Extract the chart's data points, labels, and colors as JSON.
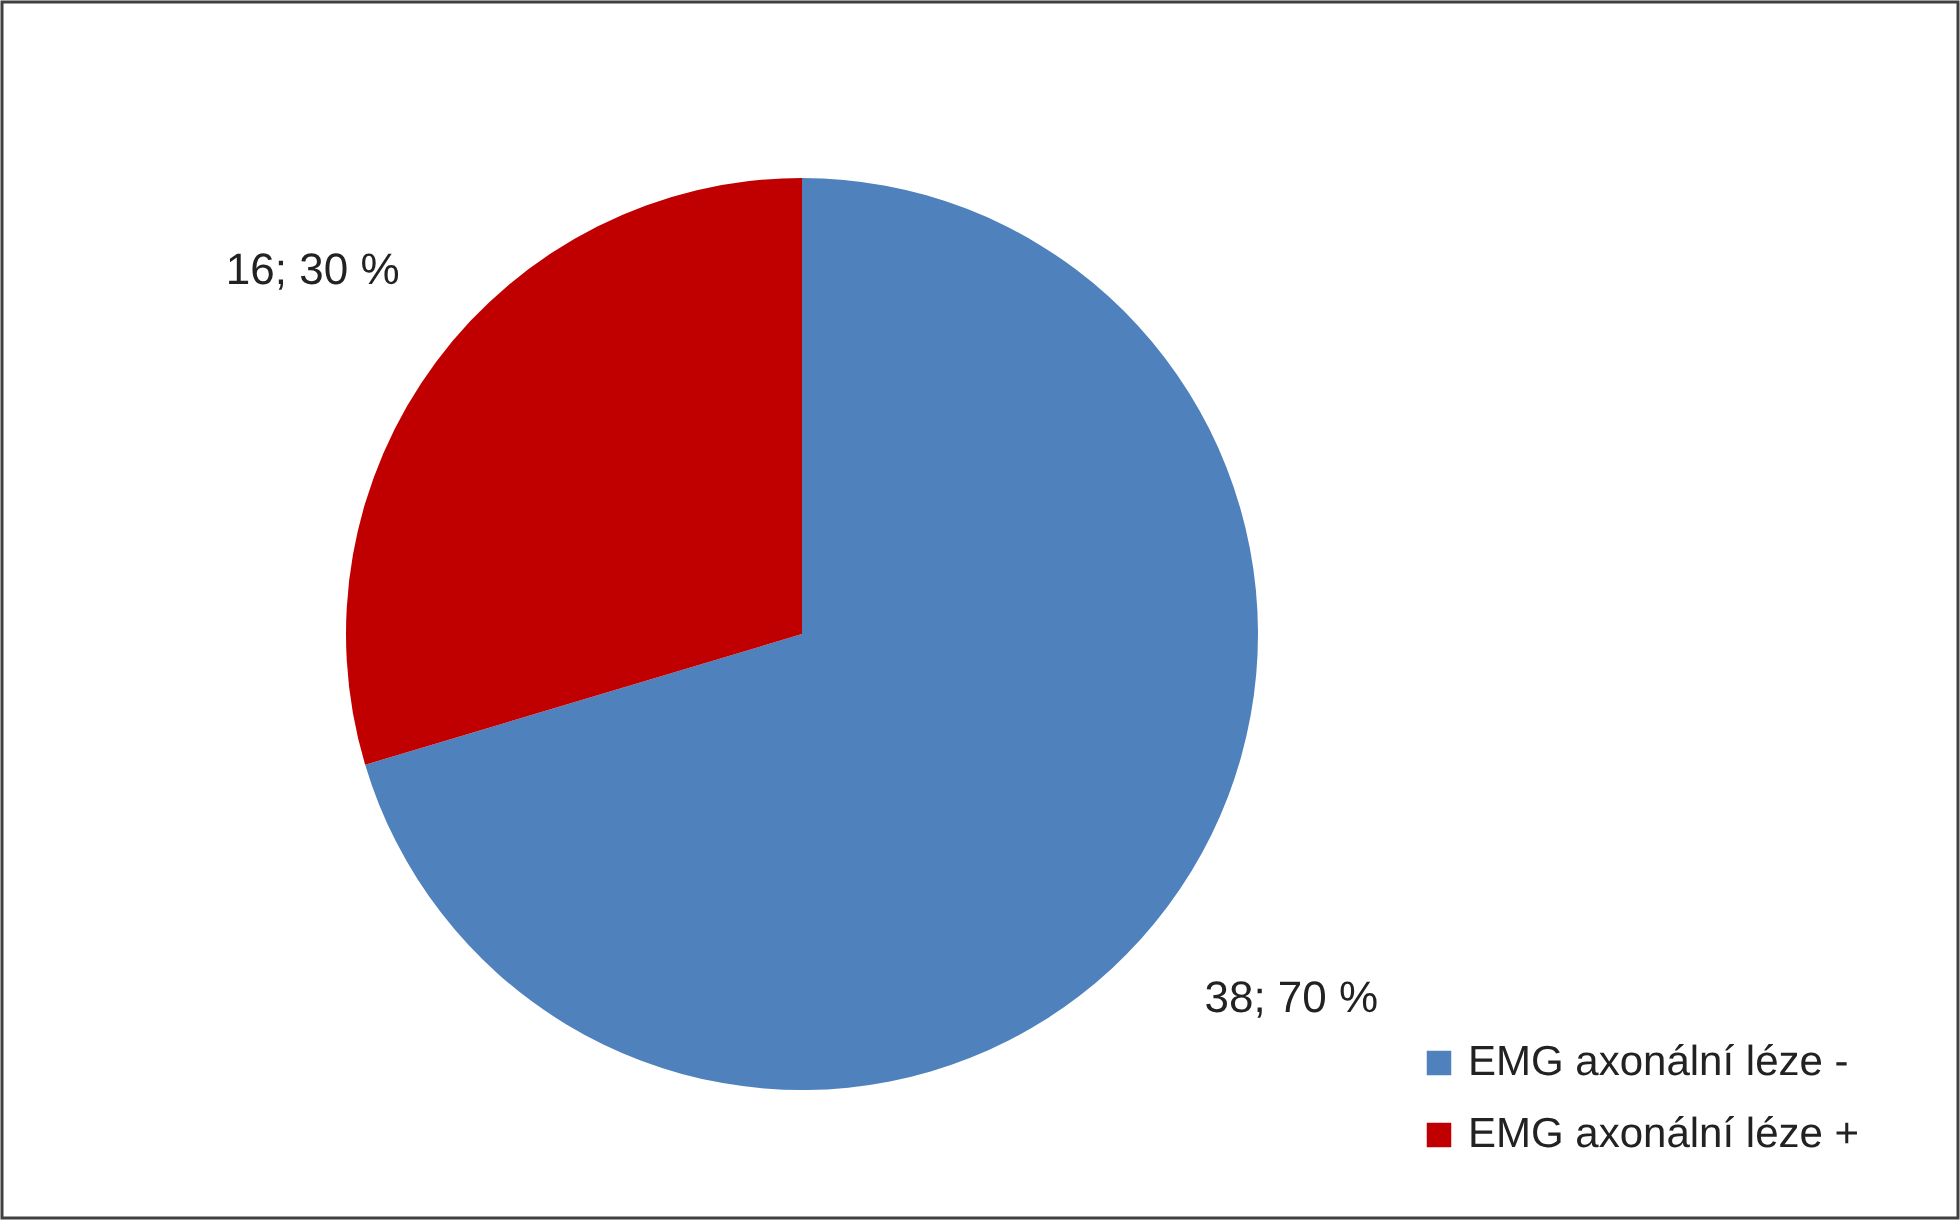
{
  "chart_data": {
    "type": "pie",
    "categories": [
      "EMG axonální léze -",
      "EMG axonální léze +"
    ],
    "values": [
      38,
      16
    ],
    "colors": [
      "#4f81bd",
      "#c00000"
    ],
    "value_labels": [
      "38; 70 %",
      "16; 30 %"
    ],
    "legend": "bottom right"
  }
}
